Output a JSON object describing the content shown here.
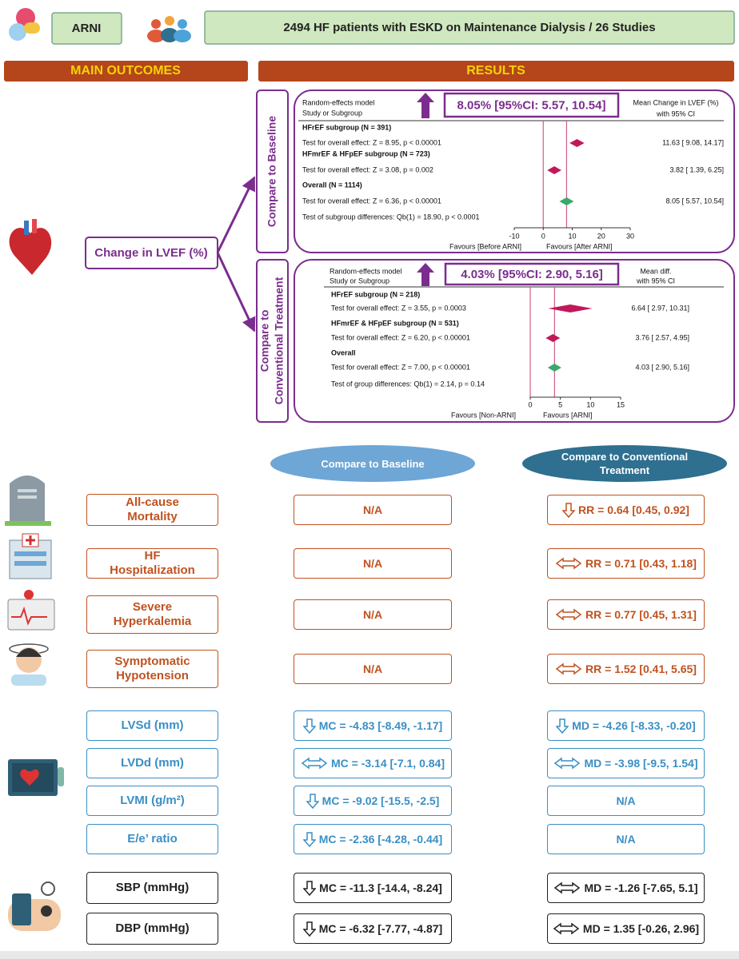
{
  "header": {
    "drug": "ARNI",
    "population": "2494 HF patients with ESKD on Maintenance Dialysis / 26 Studies"
  },
  "sections": {
    "main_outcomes": "MAIN OUTCOMES",
    "results": "RESULTS"
  },
  "lvef": {
    "label": "Change in LVEF (%)",
    "panels": [
      {
        "side_label": [
          "Compare to Baseline"
        ],
        "model": "Random-effects model",
        "column": "Study or Subgroup",
        "summary": "8.05% [95%CI: 5.57, 10.54]",
        "effect_header": [
          "Mean Change in LVEF (%)",
          "with 95% CI"
        ],
        "rows": [
          {
            "name": "HFrEF subgroup (N = 391)",
            "test": "Test for overall effect: Z = 8.95, p < 0.00001",
            "estimate": 11.63,
            "lower": 9.08,
            "upper": 14.17,
            "ci_label": "11.63 [  9.08,  14.17]",
            "color": "#c2185b"
          },
          {
            "name": "HFmrEF & HFpEF subgroup (N = 723)",
            "test": "Test for overall effect: Z = 3.08, p = 0.002",
            "estimate": 3.82,
            "lower": 1.39,
            "upper": 6.25,
            "ci_label": "3.82 [  1.39,   6.25]",
            "color": "#c2185b"
          },
          {
            "name": "Overall (N = 1114)",
            "test": "Test for overall effect: Z = 6.36, p < 0.00001",
            "estimate": 8.05,
            "lower": 5.57,
            "upper": 10.54,
            "ci_label": "8.05 [  5.57,  10.54]",
            "color": "#3aa86b"
          }
        ],
        "heterogeneity": "Test of subgroup differences: Qb(1) = 18.90, p < 0.0001",
        "xlim": [
          -10,
          30
        ],
        "xticks": [
          -10,
          0,
          10,
          20,
          30
        ],
        "favours": [
          "Favours [Before ARNI]",
          "Favours [After ARNI]"
        ]
      },
      {
        "side_label": [
          "Compare to",
          "Conventional Treatment"
        ],
        "model": "Random-effects model",
        "column": "Study or Subgroup",
        "summary": "4.03% [95%CI: 2.90, 5.16]",
        "effect_header": [
          "Mean diff.",
          "with 95% CI"
        ],
        "rows": [
          {
            "name": "HFrEF subgroup (N = 218)",
            "test": "Test for overall effect: Z = 3.55, p = 0.0003",
            "estimate": 6.64,
            "lower": 2.97,
            "upper": 10.31,
            "ci_label": "6.64 [  2.97,  10.31]",
            "color": "#c2185b"
          },
          {
            "name": "HFmrEF & HFpEF subgroup (N = 531)",
            "test": "Test for overall effect: Z = 6.20, p < 0.00001",
            "estimate": 3.76,
            "lower": 2.57,
            "upper": 4.95,
            "ci_label": "3.76 [  2.57,   4.95]",
            "color": "#c2185b"
          },
          {
            "name": "Overall",
            "test": "Test for overall effect: Z = 7.00, p < 0.00001",
            "estimate": 4.03,
            "lower": 2.9,
            "upper": 5.16,
            "ci_label": "4.03 [  2.90,   5.16]",
            "color": "#3aa86b"
          }
        ],
        "heterogeneity": "Test of group differences: Qb(1) = 2.14, p = 0.14",
        "xlim": [
          0,
          15
        ],
        "xticks": [
          0,
          5,
          10,
          15
        ],
        "favours": [
          "Favours [Non-ARNI]",
          "Favours [ARNI]"
        ]
      }
    ]
  },
  "columns": [
    "Compare to Baseline",
    "Compare to Conventional Treatment"
  ],
  "outcome_groups": [
    {
      "color": "#c0521f",
      "rows": [
        {
          "label": "All-cause Mortality",
          "baseline": {
            "text": "N/A"
          },
          "conventional": {
            "text": "RR = 0.64 [0.45, 0.92]",
            "arrow": "down"
          }
        },
        {
          "label": "HF Hospitalization",
          "baseline": {
            "text": "N/A"
          },
          "conventional": {
            "text": "RR = 0.71 [0.43, 1.18]",
            "arrow": "both"
          }
        },
        {
          "label": "Severe Hyperkalemia",
          "baseline": {
            "text": "N/A"
          },
          "conventional": {
            "text": "RR = 0.77 [0.45, 1.31]",
            "arrow": "both"
          }
        },
        {
          "label": "Symptomatic Hypotension",
          "baseline": {
            "text": "N/A"
          },
          "conventional": {
            "text": "RR = 1.52 [0.41, 5.65]",
            "arrow": "both"
          }
        }
      ]
    },
    {
      "color": "#3a8fc4",
      "rows": [
        {
          "label": "LVSd (mm)",
          "baseline": {
            "text": "MC = -4.83 [-8.49, -1.17]",
            "arrow": "down"
          },
          "conventional": {
            "text": "MD = -4.26 [-8.33, -0.20]",
            "arrow": "down"
          }
        },
        {
          "label": "LVDd (mm)",
          "baseline": {
            "text": "MC = -3.14 [-7.1, 0.84]",
            "arrow": "both"
          },
          "conventional": {
            "text": "MD = -3.98 [-9.5, 1.54]",
            "arrow": "both"
          }
        },
        {
          "label": "LVMI (g/m²)",
          "baseline": {
            "text": "MC = -9.02 [-15.5, -2.5]",
            "arrow": "down"
          },
          "conventional": {
            "text": "N/A"
          }
        },
        {
          "label": "E/e’ ratio",
          "baseline": {
            "text": "MC = -2.36 [-4.28, -0.44]",
            "arrow": "down"
          },
          "conventional": {
            "text": "N/A"
          }
        }
      ]
    },
    {
      "color": "#222222",
      "rows": [
        {
          "label": "SBP (mmHg)",
          "baseline": {
            "text": "MC = -11.3 [-14.4, -8.24]",
            "arrow": "down"
          },
          "conventional": {
            "text": "MD = -1.26 [-7.65, 5.1]",
            "arrow": "both"
          }
        },
        {
          "label": "DBP (mmHg)",
          "baseline": {
            "text": "MC = -6.32 [-7.77, -4.87]",
            "arrow": "down"
          },
          "conventional": {
            "text": "MD = 1.35 [-0.26, 2.96]",
            "arrow": "both"
          }
        }
      ]
    }
  ]
}
